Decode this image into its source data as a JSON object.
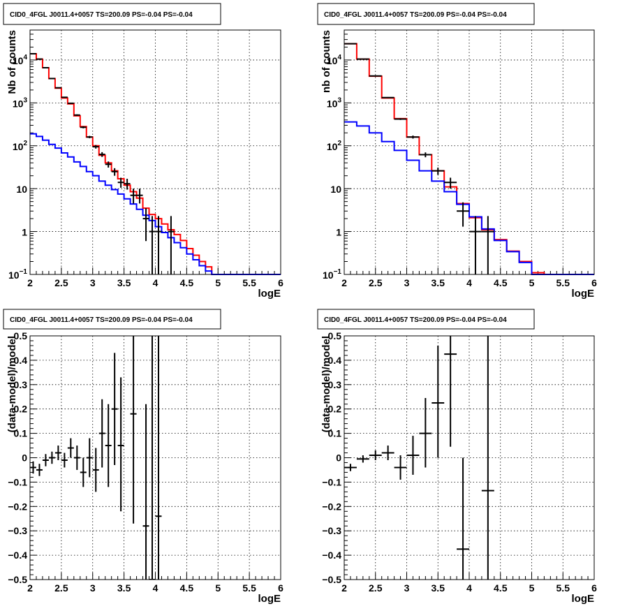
{
  "chart_data": [
    {
      "type": "histogram-log",
      "panel_label": "CID0_4FGL J0011.4+0057 TS=200.09 PS=-0.04 PS=-0.04",
      "xlabel": "logE",
      "ylabel": "Nb of counts",
      "xlim": [
        2,
        6
      ],
      "ylim": [
        0.1,
        50000
      ],
      "log_y": true,
      "grid": true,
      "x_ticks": [
        "2",
        "2.5",
        "3",
        "3.5",
        "4",
        "4.5",
        "5",
        "5.5",
        "6"
      ],
      "y_ticks": [
        {
          "v": 0.1,
          "base": "10",
          "exp": "−1"
        },
        {
          "v": 1,
          "base": "1",
          "exp": ""
        },
        {
          "v": 10,
          "base": "10",
          "exp": ""
        },
        {
          "v": 100,
          "base": "10",
          "exp": "2"
        },
        {
          "v": 1000,
          "base": "10",
          "exp": "3"
        },
        {
          "v": 10000,
          "base": "10",
          "exp": "4"
        }
      ],
      "series": [
        {
          "color": "#ff0000",
          "edges": [
            2.0,
            2.1,
            2.2,
            2.3,
            2.4,
            2.5,
            2.6,
            2.7,
            2.8,
            2.9,
            3.0,
            3.1,
            3.2,
            3.3,
            3.4,
            3.5,
            3.6,
            3.7,
            3.8,
            3.9,
            4.0,
            4.1,
            4.2,
            4.3,
            4.4,
            4.5,
            4.6,
            4.7,
            4.8,
            4.9,
            5.0,
            5.1,
            5.2,
            5.3,
            5.4,
            5.5,
            5.6,
            5.7,
            5.8,
            5.9,
            6.0
          ],
          "values": [
            14000,
            10500,
            6600,
            3700,
            2200,
            1300,
            950,
            500,
            280,
            160,
            100,
            60,
            40,
            26,
            17,
            12,
            8.5,
            6,
            3.5,
            2.5,
            2,
            1.5,
            1.1,
            0.85,
            0.62,
            0.4,
            0.28,
            0.2,
            0.15,
            0.1,
            0.1,
            0.1,
            0.1,
            0.1,
            0.1,
            0.1,
            0.1,
            0.1,
            0.1,
            0.1
          ]
        },
        {
          "color": "#0000ff",
          "edges": [
            2.0,
            2.1,
            2.2,
            2.3,
            2.4,
            2.5,
            2.6,
            2.7,
            2.8,
            2.9,
            3.0,
            3.1,
            3.2,
            3.3,
            3.4,
            3.5,
            3.6,
            3.7,
            3.8,
            3.9,
            4.0,
            4.1,
            4.2,
            4.3,
            4.4,
            4.5,
            4.6,
            4.7,
            4.8,
            4.9,
            5.0,
            5.1,
            5.2,
            5.3,
            5.4,
            5.5,
            5.6,
            5.7,
            5.8,
            5.9,
            6.0
          ],
          "values": [
            190,
            165,
            135,
            108,
            88,
            68,
            55,
            42,
            33,
            25,
            20,
            15,
            12,
            9.5,
            7.5,
            5.8,
            4.4,
            3.3,
            2.4,
            1.8,
            1.3,
            0.95,
            0.72,
            0.55,
            0.42,
            0.3,
            0.22,
            0.16,
            0.12,
            0.1,
            0.1,
            0.1,
            0.1,
            0.1,
            0.1,
            0.1,
            0.1,
            0.1,
            0.1,
            0.1
          ]
        }
      ],
      "points": [
        {
          "x": 2.05,
          "y": 14000,
          "dx": 0.05,
          "lo": 13880,
          "hi": 14120
        },
        {
          "x": 2.15,
          "y": 10500,
          "dx": 0.05,
          "lo": 10400,
          "hi": 10600
        },
        {
          "x": 2.25,
          "y": 6600,
          "dx": 0.05,
          "lo": 6520,
          "hi": 6680
        },
        {
          "x": 2.35,
          "y": 3700,
          "dx": 0.05,
          "lo": 3640,
          "hi": 3760
        },
        {
          "x": 2.45,
          "y": 2250,
          "dx": 0.05,
          "lo": 2200,
          "hi": 2300
        },
        {
          "x": 2.55,
          "y": 1350,
          "dx": 0.05,
          "lo": 1310,
          "hi": 1390
        },
        {
          "x": 2.65,
          "y": 980,
          "dx": 0.05,
          "lo": 950,
          "hi": 1010
        },
        {
          "x": 2.75,
          "y": 520,
          "dx": 0.05,
          "lo": 500,
          "hi": 540
        },
        {
          "x": 2.85,
          "y": 270,
          "dx": 0.05,
          "lo": 255,
          "hi": 285
        },
        {
          "x": 2.95,
          "y": 160,
          "dx": 0.05,
          "lo": 150,
          "hi": 170
        },
        {
          "x": 3.05,
          "y": 95,
          "dx": 0.05,
          "lo": 86,
          "hi": 104
        },
        {
          "x": 3.15,
          "y": 63,
          "dx": 0.05,
          "lo": 55,
          "hi": 71
        },
        {
          "x": 3.25,
          "y": 37,
          "dx": 0.05,
          "lo": 31,
          "hi": 43
        },
        {
          "x": 3.35,
          "y": 25,
          "dx": 0.05,
          "lo": 20,
          "hi": 30
        },
        {
          "x": 3.45,
          "y": 14,
          "dx": 0.05,
          "lo": 10.5,
          "hi": 18
        },
        {
          "x": 3.55,
          "y": 13,
          "dx": 0.05,
          "lo": 9.5,
          "hi": 17
        },
        {
          "x": 3.65,
          "y": 7,
          "dx": 0.05,
          "lo": 4.5,
          "hi": 10
        },
        {
          "x": 3.75,
          "y": 7,
          "dx": 0.05,
          "lo": 4.5,
          "hi": 10
        },
        {
          "x": 3.85,
          "y": 2,
          "dx": 0.05,
          "lo": 0.6,
          "hi": 3.5
        },
        {
          "x": 3.95,
          "y": 1,
          "dx": 0.05,
          "lo": 0.1,
          "hi": 2.3
        },
        {
          "x": 4.05,
          "y": 1,
          "dx": 0.05,
          "lo": 0.1,
          "hi": 2.3
        },
        {
          "x": 4.25,
          "y": 1,
          "dx": 0.05,
          "lo": 0.1,
          "hi": 2.3
        }
      ]
    },
    {
      "type": "histogram-log",
      "panel_label": "CID0_4FGL J0011.4+0057 TS=200.09 PS=-0.04 PS=-0.04",
      "xlabel": "logE",
      "ylabel": "nb of counts",
      "xlim": [
        2,
        6
      ],
      "ylim": [
        0.1,
        50000
      ],
      "log_y": true,
      "grid": true,
      "x_ticks": [
        "2",
        "2.5",
        "3",
        "3.5",
        "4",
        "4.5",
        "5",
        "5.5",
        "6"
      ],
      "y_ticks": [
        {
          "v": 0.1,
          "base": "10",
          "exp": "−1"
        },
        {
          "v": 1,
          "base": "1",
          "exp": ""
        },
        {
          "v": 10,
          "base": "10",
          "exp": ""
        },
        {
          "v": 100,
          "base": "10",
          "exp": "2"
        },
        {
          "v": 1000,
          "base": "10",
          "exp": "3"
        },
        {
          "v": 10000,
          "base": "10",
          "exp": "4"
        }
      ],
      "series": [
        {
          "color": "#ff0000",
          "edges": [
            2.0,
            2.2,
            2.4,
            2.6,
            2.8,
            3.0,
            3.2,
            3.4,
            3.6,
            3.8,
            4.0,
            4.2,
            4.4,
            4.6,
            4.8,
            5.0,
            5.2,
            5.4,
            5.6,
            5.8,
            6.0
          ],
          "values": [
            24000,
            10500,
            4200,
            1300,
            430,
            160,
            62,
            26,
            11,
            4.5,
            2.1,
            1.1,
            0.65,
            0.35,
            0.2,
            0.11,
            0.1,
            0.1,
            0.1,
            0.1
          ]
        },
        {
          "color": "#0000ff",
          "edges": [
            2.0,
            2.2,
            2.4,
            2.6,
            2.8,
            3.0,
            3.2,
            3.4,
            3.6,
            3.8,
            4.0,
            4.2,
            4.4,
            4.6,
            4.8,
            5.0,
            5.2,
            5.4,
            5.6,
            5.8,
            6.0
          ],
          "values": [
            360,
            290,
            200,
            125,
            78,
            46,
            26,
            15,
            8.5,
            4.3,
            2.2,
            1.15,
            0.62,
            0.34,
            0.19,
            0.1,
            0.1,
            0.1,
            0.1,
            0.1
          ]
        }
      ],
      "points": [
        {
          "x": 2.1,
          "y": 24000,
          "dx": 0.1,
          "lo": 23850,
          "hi": 24150
        },
        {
          "x": 2.3,
          "y": 10500,
          "dx": 0.1,
          "lo": 10400,
          "hi": 10600
        },
        {
          "x": 2.5,
          "y": 4250,
          "dx": 0.1,
          "lo": 4180,
          "hi": 4320
        },
        {
          "x": 2.7,
          "y": 1330,
          "dx": 0.1,
          "lo": 1290,
          "hi": 1370
        },
        {
          "x": 2.9,
          "y": 420,
          "dx": 0.1,
          "lo": 400,
          "hi": 440
        },
        {
          "x": 3.1,
          "y": 160,
          "dx": 0.1,
          "lo": 147,
          "hi": 173
        },
        {
          "x": 3.3,
          "y": 62,
          "dx": 0.1,
          "lo": 54,
          "hi": 70
        },
        {
          "x": 3.5,
          "y": 26,
          "dx": 0.1,
          "lo": 21,
          "hi": 31
        },
        {
          "x": 3.7,
          "y": 14,
          "dx": 0.1,
          "lo": 10,
          "hi": 18
        },
        {
          "x": 3.9,
          "y": 3,
          "dx": 0.1,
          "lo": 1.3,
          "hi": 4.8
        },
        {
          "x": 4.1,
          "y": 1,
          "dx": 0.1,
          "lo": 0.1,
          "hi": 2.3
        },
        {
          "x": 4.3,
          "y": 1,
          "dx": 0.1,
          "lo": 0.1,
          "hi": 2.3
        }
      ]
    },
    {
      "type": "scatter-errorbars",
      "panel_label": "CID0_4FGL J0011.4+0057 TS=200.09 PS=-0.04 PS=-0.04",
      "xlabel": "logE",
      "ylabel": "(data-model)/model",
      "xlim": [
        2,
        6
      ],
      "ylim": [
        -0.5,
        0.5
      ],
      "log_y": false,
      "grid": true,
      "x_ticks": [
        "2",
        "2.5",
        "3",
        "3.5",
        "4",
        "4.5",
        "5",
        "5.5",
        "6"
      ],
      "y_ticks": [
        "−0.5",
        "−0.4",
        "−0.3",
        "−0.2",
        "−0.1",
        "0",
        "0.1",
        "0.2",
        "0.3",
        "0.4",
        "0.5"
      ],
      "y_tick_values": [
        -0.5,
        -0.4,
        -0.3,
        -0.2,
        -0.1,
        0,
        0.1,
        0.2,
        0.3,
        0.4,
        0.5
      ],
      "points": [
        {
          "x": 2.05,
          "y": -0.04,
          "dx": 0.05,
          "lo": -0.065,
          "hi": -0.015
        },
        {
          "x": 2.15,
          "y": -0.05,
          "dx": 0.05,
          "lo": -0.075,
          "hi": -0.025
        },
        {
          "x": 2.25,
          "y": -0.01,
          "dx": 0.05,
          "lo": -0.035,
          "hi": 0.015
        },
        {
          "x": 2.35,
          "y": 0.0,
          "dx": 0.05,
          "lo": -0.025,
          "hi": 0.025
        },
        {
          "x": 2.45,
          "y": 0.02,
          "dx": 0.05,
          "lo": -0.01,
          "hi": 0.05
        },
        {
          "x": 2.55,
          "y": -0.01,
          "dx": 0.05,
          "lo": -0.04,
          "hi": 0.02
        },
        {
          "x": 2.65,
          "y": 0.04,
          "dx": 0.05,
          "lo": 0.0,
          "hi": 0.08
        },
        {
          "x": 2.75,
          "y": 0.0,
          "dx": 0.05,
          "lo": -0.05,
          "hi": 0.05
        },
        {
          "x": 2.85,
          "y": -0.06,
          "dx": 0.05,
          "lo": -0.12,
          "hi": 0.0
        },
        {
          "x": 2.95,
          "y": -0.0,
          "dx": 0.05,
          "lo": -0.08,
          "hi": 0.08
        },
        {
          "x": 3.05,
          "y": -0.05,
          "dx": 0.05,
          "lo": -0.14,
          "hi": 0.04
        },
        {
          "x": 3.15,
          "y": 0.1,
          "dx": 0.05,
          "lo": -0.04,
          "hi": 0.24
        },
        {
          "x": 3.25,
          "y": 0.05,
          "dx": 0.05,
          "lo": -0.12,
          "hi": 0.22
        },
        {
          "x": 3.35,
          "y": 0.2,
          "dx": 0.05,
          "lo": -0.03,
          "hi": 0.43
        },
        {
          "x": 3.45,
          "y": 0.05,
          "dx": 0.05,
          "lo": -0.22,
          "hi": 0.33
        },
        {
          "x": 3.65,
          "y": 0.18,
          "dx": 0.05,
          "lo": -0.27,
          "hi": 0.5
        },
        {
          "x": 3.85,
          "y": -0.28,
          "dx": 0.05,
          "lo": -0.5,
          "hi": 0.22
        },
        {
          "x": 3.95,
          "y": -0.5,
          "dx": 0.05,
          "lo": -0.5,
          "hi": 0.5
        },
        {
          "x": 4.05,
          "y": -0.24,
          "dx": 0.05,
          "lo": -0.5,
          "hi": 0.5
        }
      ]
    },
    {
      "type": "scatter-errorbars",
      "panel_label": "CID0_4FGL J0011.4+0057 TS=200.09 PS=-0.04 PS=-0.04",
      "xlabel": "logE",
      "ylabel": "(data-model)/model",
      "xlim": [
        2,
        6
      ],
      "ylim": [
        -0.5,
        0.5
      ],
      "log_y": false,
      "grid": true,
      "x_ticks": [
        "2",
        "2.5",
        "3",
        "3.5",
        "4",
        "4.5",
        "5",
        "5.5",
        "6"
      ],
      "y_ticks": [
        "−0.5",
        "−0.4",
        "−0.3",
        "−0.2",
        "−0.1",
        "0",
        "0.1",
        "0.2",
        "0.3",
        "0.4",
        "0.5"
      ],
      "y_tick_values": [
        -0.5,
        -0.4,
        -0.3,
        -0.2,
        -0.1,
        0,
        0.1,
        0.2,
        0.3,
        0.4,
        0.5
      ],
      "points": [
        {
          "x": 2.1,
          "y": -0.04,
          "dx": 0.1,
          "lo": -0.055,
          "hi": -0.025
        },
        {
          "x": 2.3,
          "y": -0.005,
          "dx": 0.1,
          "lo": -0.02,
          "hi": 0.01
        },
        {
          "x": 2.5,
          "y": 0.01,
          "dx": 0.1,
          "lo": -0.01,
          "hi": 0.03
        },
        {
          "x": 2.7,
          "y": 0.02,
          "dx": 0.1,
          "lo": -0.01,
          "hi": 0.05
        },
        {
          "x": 2.9,
          "y": -0.04,
          "dx": 0.1,
          "lo": -0.09,
          "hi": 0.01
        },
        {
          "x": 3.1,
          "y": 0.01,
          "dx": 0.1,
          "lo": -0.07,
          "hi": 0.09
        },
        {
          "x": 3.3,
          "y": 0.1,
          "dx": 0.1,
          "lo": -0.04,
          "hi": 0.245
        },
        {
          "x": 3.5,
          "y": 0.225,
          "dx": 0.1,
          "lo": 0.0,
          "hi": 0.46
        },
        {
          "x": 3.7,
          "y": 0.425,
          "dx": 0.1,
          "lo": 0.045,
          "hi": 0.5
        },
        {
          "x": 3.9,
          "y": -0.375,
          "dx": 0.1,
          "lo": -0.5,
          "hi": 0.0
        },
        {
          "x": 4.3,
          "y": -0.135,
          "dx": 0.1,
          "lo": -0.5,
          "hi": 0.5
        }
      ]
    }
  ]
}
